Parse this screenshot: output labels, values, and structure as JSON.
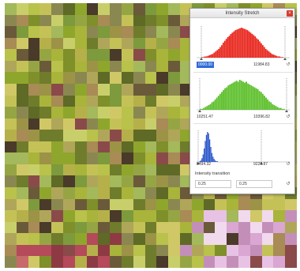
{
  "panel": {
    "title": "Intensity Stretch",
    "close_icon": "×",
    "red": {
      "color": "#e8241b",
      "min_label": "0000.00",
      "max_label": "11984.83",
      "values": [
        1,
        1,
        2,
        2,
        3,
        4,
        5,
        6,
        8,
        10,
        12,
        14,
        17,
        20,
        24,
        27,
        30,
        33,
        35,
        38,
        40,
        42,
        44,
        45,
        46,
        47,
        48,
        47,
        46,
        45,
        44,
        42,
        40,
        38,
        36,
        34,
        31,
        29,
        26,
        23,
        20,
        17,
        14,
        12,
        10,
        8,
        6,
        5,
        4,
        3,
        2,
        2,
        1,
        1
      ],
      "spin_icon": "↺"
    },
    "green": {
      "color": "#5cbf2a",
      "min_label": "10251.47",
      "max_label": "10396.82",
      "values": [
        1,
        1,
        2,
        3,
        4,
        5,
        6,
        8,
        9,
        11,
        13,
        15,
        17,
        19,
        21,
        23,
        24,
        26,
        27,
        28,
        29,
        30,
        31,
        30,
        32,
        31,
        30,
        29,
        30,
        28,
        27,
        26,
        25,
        24,
        23,
        22,
        20,
        19,
        17,
        15,
        13,
        11,
        9,
        8,
        6,
        5,
        4,
        3,
        2,
        2,
        1,
        1
      ],
      "spin_icon": "↺"
    },
    "blue": {
      "color": "#2c57c9",
      "min_label": "8494.32",
      "max_label": "9223.87",
      "values": [
        0,
        1,
        2,
        5,
        10,
        18,
        28,
        36,
        40,
        38,
        30,
        20,
        12,
        7,
        4,
        2,
        1,
        1,
        0,
        0,
        0,
        0,
        0,
        0,
        0,
        0,
        0,
        0,
        0,
        0,
        0,
        0,
        0,
        0,
        0,
        0,
        0,
        0,
        0,
        0
      ],
      "spin_icon": "↺"
    },
    "gamma": {
      "label": "Intensity transition",
      "left_value": "0.25",
      "right_value": "0.25",
      "spin_icon": "↺"
    }
  }
}
